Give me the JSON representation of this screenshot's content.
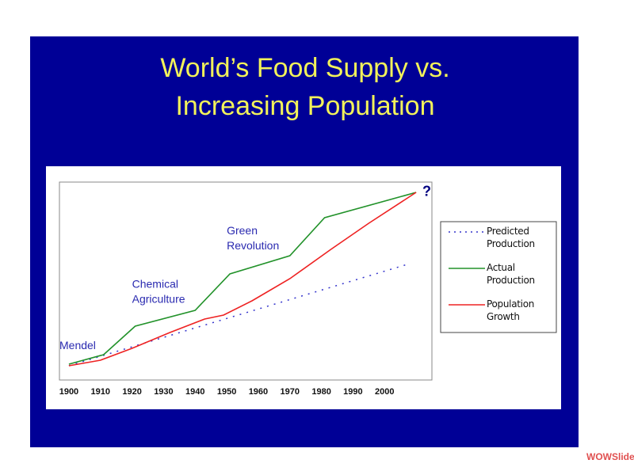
{
  "chart_data": {
    "type": "line",
    "title_lines": [
      "World’s Food Supply vs.",
      "Increasing Population"
    ],
    "xlim": [
      1897,
      2015
    ],
    "ylim": [
      0,
      100
    ],
    "xticks": [
      1900,
      1910,
      1920,
      1930,
      1940,
      1950,
      1960,
      1970,
      1980,
      1990,
      2000
    ],
    "series": [
      {
        "name": "Predicted Production",
        "color": "#3333cc",
        "style": "dotted",
        "x": [
          1900,
          1954,
          2008
        ],
        "values": [
          7.2,
          33,
          58.8
        ]
      },
      {
        "name": "Actual Production",
        "color": "#22922a",
        "style": "solid",
        "x": [
          1900,
          1911,
          1921,
          1940,
          1951,
          1970,
          1981,
          2010
        ],
        "values": [
          8,
          12.8,
          27.2,
          35.2,
          53.6,
          62.8,
          82,
          94.8
        ]
      },
      {
        "name": "Population Growth",
        "color": "#ee2222",
        "style": "solid",
        "x": [
          1900,
          1910,
          1920,
          1932,
          1943,
          1949,
          1958,
          1970,
          1983,
          1995,
          2010
        ],
        "values": [
          7.2,
          10,
          16,
          24,
          30.8,
          32.8,
          40,
          51.2,
          66,
          79.2,
          94.8
        ]
      }
    ],
    "annotations": [
      {
        "lines": [
          "Mendel"
        ],
        "x": 1897,
        "y": 17
      },
      {
        "lines": [
          "Chemical",
          "Agriculture"
        ],
        "x": 1920,
        "y": 48
      },
      {
        "lines": [
          "Green",
          "Revolution"
        ],
        "x": 1950,
        "y": 75
      },
      {
        "lines": [
          "?"
        ],
        "x": 2012,
        "y": 95
      }
    ],
    "watermark": "WOWSlider"
  }
}
